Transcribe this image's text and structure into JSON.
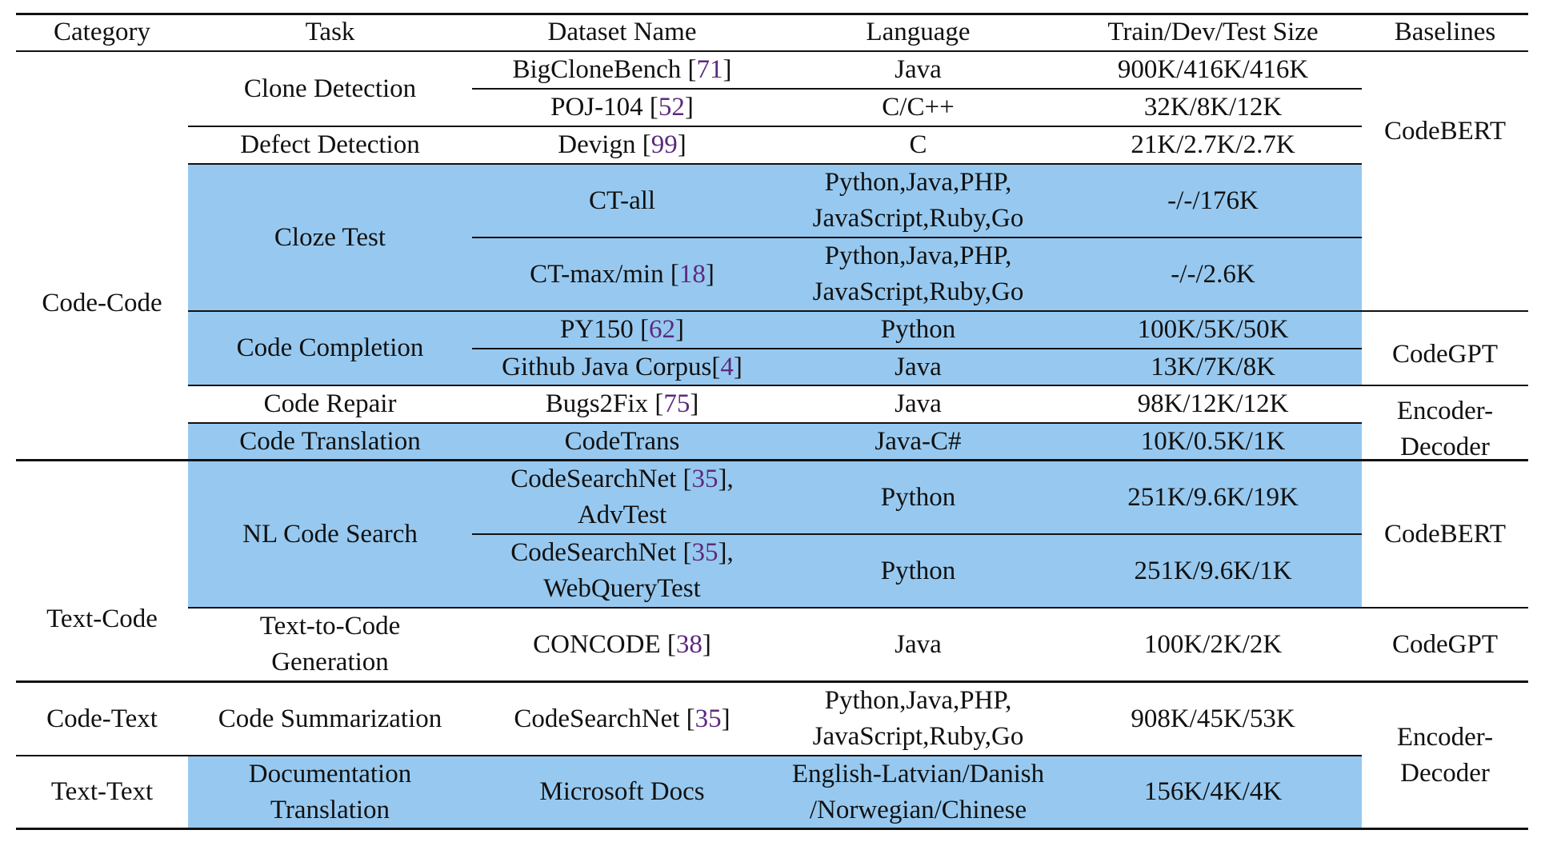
{
  "header": {
    "category": "Category",
    "task": "Task",
    "dataset": "Dataset Name",
    "language": "Language",
    "size": "Train/Dev/Test Size",
    "baselines": "Baselines"
  },
  "categories": {
    "code_code": "Code-Code",
    "text_code": "Text-Code",
    "code_text": "Code-Text",
    "text_text": "Text-Text"
  },
  "tasks": {
    "clone": "Clone Detection",
    "defect": "Defect Detection",
    "cloze": "Cloze Test",
    "completion": "Code Completion",
    "repair": "Code Repair",
    "translation": "Code Translation",
    "nl_search": "NL Code Search",
    "t2c_1": "Text-to-Code",
    "t2c_2": "Generation",
    "summarization": "Code Summarization",
    "doc_1": "Documentation",
    "doc_2": "Translation"
  },
  "datasets": {
    "bigclone": {
      "name": "BigCloneBench ",
      "ref": "71"
    },
    "poj": {
      "name": "POJ-104 ",
      "ref": "52"
    },
    "devign": {
      "name": "Devign ",
      "ref": "99"
    },
    "ctall": {
      "name": "CT-all"
    },
    "ctmax": {
      "name": "CT-max/min ",
      "ref": "18"
    },
    "py150": {
      "name": "PY150 ",
      "ref": "62"
    },
    "github": {
      "name": "Github Java Corpus",
      "ref": "4"
    },
    "bugs2fix": {
      "name": "Bugs2Fix ",
      "ref": "75"
    },
    "codetrans": {
      "name": "CodeTrans"
    },
    "csn_adv": {
      "name": "CodeSearchNet ",
      "ref": "35",
      "suffix": "],",
      "line2": "AdvTest"
    },
    "csn_web": {
      "name": "CodeSearchNet ",
      "ref": "35",
      "suffix": "],",
      "line2": "WebQueryTest"
    },
    "concode": {
      "name": "CONCODE ",
      "ref": "38"
    },
    "csn_sum": {
      "name": "CodeSearchNet ",
      "ref": "35"
    },
    "msdocs": {
      "name": "Microsoft Docs"
    }
  },
  "languages": {
    "java": "Java",
    "cpp": "C/C++",
    "c": "C",
    "multi_1": "Python,Java,PHP,",
    "multi_2": "JavaScript,Ruby,Go",
    "python": "Python",
    "javacs": "Java-C#",
    "doc_1": "English-Latvian/Danish",
    "doc_2": "/Norwegian/Chinese"
  },
  "sizes": {
    "bigclone": "900K/416K/416K",
    "poj": "32K/8K/12K",
    "devign": "21K/2.7K/2.7K",
    "ctall": "-/-/176K",
    "ctmax": "-/-/2.6K",
    "py150": "100K/5K/50K",
    "github": "13K/7K/8K",
    "bugs2fix": "98K/12K/12K",
    "codetrans": "10K/0.5K/1K",
    "csn_adv": "251K/9.6K/19K",
    "csn_web": "251K/9.6K/1K",
    "concode": "100K/2K/2K",
    "csn_sum": "908K/45K/53K",
    "msdocs": "156K/4K/4K"
  },
  "baselines": {
    "codebert": "CodeBERT",
    "codegpt": "CodeGPT",
    "encdec_1": "Encoder-",
    "encdec_2": "Decoder"
  },
  "colors": {
    "highlight": "#97c9f0",
    "citation": "#5b2a7e",
    "rule": "#111111"
  }
}
